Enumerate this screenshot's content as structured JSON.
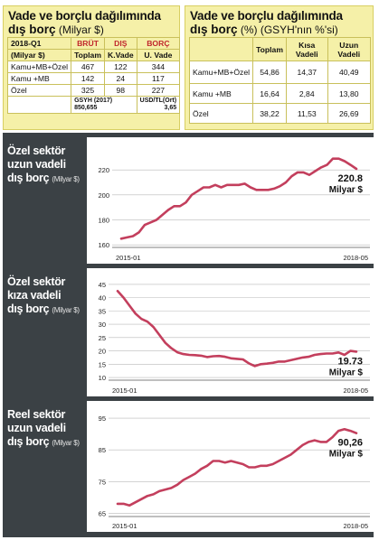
{
  "table1": {
    "title": "Vade ve borçlu dağılımında",
    "subtitle_bold": "dış borç",
    "subtitle_rest": " (Milyar $)",
    "corner_top": "2018-Q1",
    "corner_bottom": "(Milyar $)",
    "col_headers_top": [
      "BRÜT",
      "DIŞ",
      "BORÇ"
    ],
    "col_headers_bottom": [
      "Toplam",
      "K.Vade",
      "U. Vade"
    ],
    "rows": [
      {
        "label": "Kamu+MB+Özel",
        "values": [
          "467",
          "122",
          "344"
        ]
      },
      {
        "label": "Kamu +MB",
        "values": [
          "142",
          "24",
          "117"
        ]
      },
      {
        "label": "Özel",
        "values": [
          "325",
          "98",
          "227"
        ]
      }
    ],
    "foot_left": "GSYH (2017)",
    "foot_left2": "850,655",
    "foot_right": "USD/TL(Ort)",
    "foot_right2": "3,65"
  },
  "table2": {
    "title": "Vade ve borçlu dağılımında",
    "subtitle_bold": "dış borç",
    "subtitle_rest": " (%) (GSYH'nın %'si)",
    "col_headers": [
      "Toplam",
      "Kısa Vadeli",
      "Uzun Vadeli"
    ],
    "rows": [
      {
        "label": "Kamu+MB+Özel",
        "values": [
          "54,86",
          "14,37",
          "40,49"
        ]
      },
      {
        "label": "Kamu +MB",
        "values": [
          "16,64",
          "2,84",
          "13,80"
        ]
      },
      {
        "label": "Özel",
        "values": [
          "38,22",
          "11,53",
          "26,69"
        ]
      }
    ]
  },
  "colors": {
    "line": "#c33f5d",
    "grid": "#b9b9b9",
    "title_bg": "#3b4145",
    "table_bg": "#f5f0a8"
  },
  "chart_data": [
    {
      "type": "line",
      "title_lines": [
        "Özel sektör",
        "uzun vadeli",
        "dış borç"
      ],
      "unit": "(Milyar $)",
      "x_start_label": "2015-01",
      "x_end_label": "2018-05",
      "yticks": [
        160,
        180,
        200,
        220
      ],
      "ylim": [
        158,
        236
      ],
      "end_value_label": "220.8",
      "end_unit_label": "Milyar $",
      "values": [
        165,
        166,
        167,
        170,
        176,
        178,
        180,
        184,
        188,
        191,
        191,
        194,
        200,
        203,
        206,
        206,
        208,
        206,
        208,
        208,
        208,
        209,
        206,
        204,
        204,
        204,
        205,
        207,
        210,
        215,
        218,
        218,
        216,
        219,
        222,
        224,
        229,
        229,
        227,
        224,
        220.8
      ]
    },
    {
      "type": "line",
      "title_lines": [
        "Özel sektör",
        "kıza vadeli",
        "dış borç"
      ],
      "unit": "(Milyar $)",
      "x_start_label": "2015-01",
      "x_end_label": "2018-05",
      "yticks": [
        10,
        15,
        20,
        25,
        30,
        35,
        40,
        45
      ],
      "ylim": [
        9,
        47
      ],
      "end_value_label": "19.73",
      "end_unit_label": "Milyar $",
      "values": [
        42.5,
        40,
        37,
        34,
        32,
        31,
        29,
        26,
        23,
        21,
        19.5,
        18.8,
        18.5,
        18.4,
        18.2,
        17.7,
        18,
        18.1,
        17.8,
        17.2,
        17,
        16.8,
        15.3,
        14.3,
        15,
        15.2,
        15.5,
        16,
        16,
        16.5,
        17,
        17.5,
        17.8,
        18.5,
        18.8,
        19,
        19,
        19.4,
        18.5,
        20,
        19.73
      ]
    },
    {
      "type": "line",
      "title_lines": [
        "Reel sektör",
        "uzun vadeli",
        "dış borç"
      ],
      "unit": "(Milyar $)",
      "x_start_label": "2015-01",
      "x_end_label": "2018-05",
      "yticks": [
        65,
        75,
        85,
        95
      ],
      "ylim": [
        64,
        97
      ],
      "end_value_label": "90,26",
      "end_unit_label": "Milyar $",
      "values": [
        68,
        68,
        67.5,
        68.5,
        69.5,
        70.5,
        71,
        72,
        72.5,
        73,
        74,
        75.5,
        76.5,
        77.5,
        79,
        80,
        81.5,
        81.5,
        81,
        81.5,
        81,
        80.5,
        79.5,
        79.5,
        80,
        80,
        80.5,
        81.5,
        82.5,
        83.5,
        85,
        86.5,
        87.5,
        88,
        87.5,
        87.5,
        89,
        91,
        91.5,
        91,
        90.26
      ]
    }
  ]
}
